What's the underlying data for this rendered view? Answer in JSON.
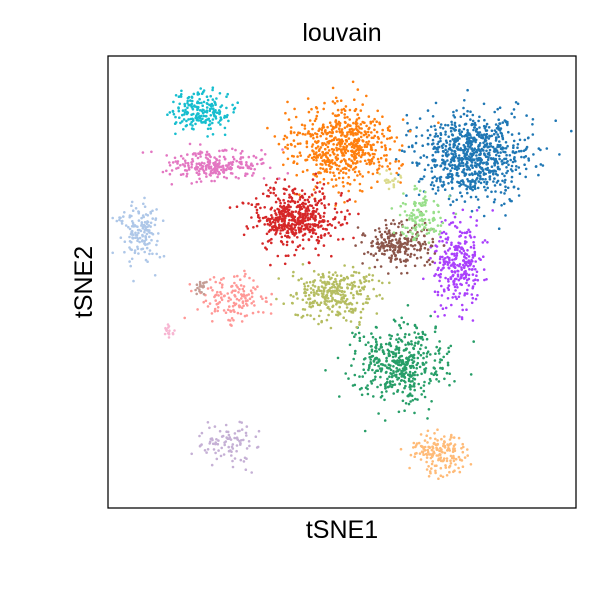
{
  "chart_data": {
    "type": "scatter",
    "title": "louvain",
    "xlabel": "tSNE1",
    "ylabel": "tSNE2",
    "xlim": [
      -50,
      50
    ],
    "ylim": [
      -50,
      50
    ],
    "grid": false,
    "legend": "none",
    "ticks": "none",
    "point_color_by": "louvain cluster",
    "series": [
      {
        "color": "#1f77b4",
        "center": [
          28,
          28
        ],
        "spread": [
          11,
          9
        ],
        "n": 800
      },
      {
        "color": "#ff7f0e",
        "center": [
          0,
          30
        ],
        "spread": [
          10,
          8
        ],
        "n": 600
      },
      {
        "color": "#279e68",
        "center": [
          12,
          -18
        ],
        "spread": [
          9,
          8
        ],
        "n": 460
      },
      {
        "color": "#d62728",
        "center": [
          -10,
          14
        ],
        "spread": [
          8,
          6
        ],
        "n": 520
      },
      {
        "color": "#aa40fc",
        "center": [
          25,
          4
        ],
        "spread": [
          5,
          9
        ],
        "n": 280
      },
      {
        "color": "#8c564b",
        "center": [
          12,
          8
        ],
        "spread": [
          6,
          5
        ],
        "n": 230
      },
      {
        "color": "#e377c2",
        "center": [
          -27,
          26
        ],
        "spread": [
          9,
          3
        ],
        "n": 240
      },
      {
        "color": "#b5bd61",
        "center": [
          -2,
          -3
        ],
        "spread": [
          8,
          5
        ],
        "n": 300
      },
      {
        "color": "#17becf",
        "center": [
          -30,
          38
        ],
        "spread": [
          6,
          4
        ],
        "n": 200
      },
      {
        "color": "#aec7e8",
        "center": [
          -43,
          11
        ],
        "spread": [
          4,
          6
        ],
        "n": 150
      },
      {
        "color": "#ffbb78",
        "center": [
          21,
          -38
        ],
        "spread": [
          5,
          4
        ],
        "n": 170
      },
      {
        "color": "#98df8a",
        "center": [
          17,
          15
        ],
        "spread": [
          5,
          5
        ],
        "n": 120
      },
      {
        "color": "#ff9896",
        "center": [
          -23,
          -4
        ],
        "spread": [
          6,
          5
        ],
        "n": 140
      },
      {
        "color": "#c5b0d5",
        "center": [
          -24,
          -36
        ],
        "spread": [
          6,
          4
        ],
        "n": 90
      },
      {
        "color": "#c49c94",
        "center": [
          -30,
          -1
        ],
        "spread": [
          1.5,
          1.5
        ],
        "n": 20
      },
      {
        "color": "#f7b6d2",
        "center": [
          -37,
          -11
        ],
        "spread": [
          1.5,
          1.5
        ],
        "n": 16
      },
      {
        "color": "#dbdb8d",
        "center": [
          10,
          22
        ],
        "spread": [
          2,
          2
        ],
        "n": 20
      }
    ]
  }
}
